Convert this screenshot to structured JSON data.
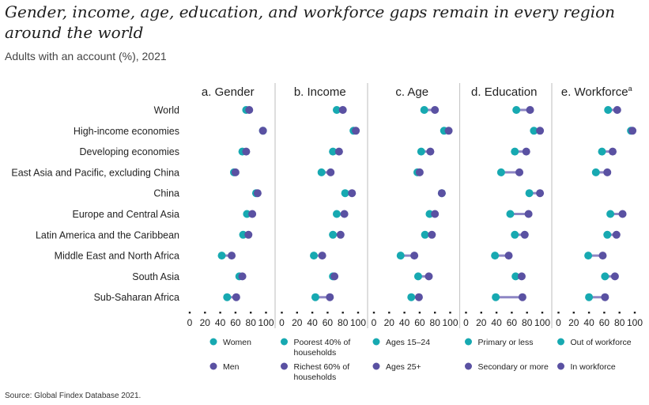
{
  "title": "Gender, income, age, education, and workforce gaps remain in every region around the world",
  "subtitle": "Adults with an account (%), 2021",
  "source": "Source: Global Findex Database 2021.",
  "colors": {
    "group1": "#17A9B1",
    "group2": "#5A51A2",
    "connector": "#8D86C4",
    "divider": "#C8C8C8"
  },
  "chart_data": {
    "type": "dumbbell",
    "title": "Gender, income, age, education, and workforce gaps remain in every region around the world",
    "subtitle": "Adults with an account (%), 2021",
    "categories": [
      "World",
      "High-income economies",
      "Developing economies",
      "East Asia and Pacific, excluding China",
      "China",
      "Europe and Central Asia",
      "Latin America and the Caribbean",
      "Middle East and North Africa",
      "South Asia",
      "Sub-Saharan Africa"
    ],
    "xlim": [
      0,
      100
    ],
    "xticks": [
      "0",
      "20",
      "40",
      "60",
      "80",
      "100"
    ],
    "panels": [
      {
        "title": "a. Gender",
        "sup": "",
        "legend": [
          "Women",
          "Men"
        ],
        "g1": [
          74,
          96,
          69,
          58,
          87,
          75,
          70,
          42,
          65,
          49
        ],
        "g2": [
          78,
          96,
          74,
          60,
          89,
          82,
          77,
          55,
          69,
          61
        ]
      },
      {
        "title": "b. Income",
        "sup": "",
        "legend": [
          "Poorest 40% of households",
          "Richest 60% of households"
        ],
        "g1": [
          72,
          94,
          67,
          52,
          83,
          72,
          67,
          42,
          67,
          44
        ],
        "g2": [
          80,
          97,
          75,
          64,
          92,
          82,
          77,
          53,
          69,
          63
        ]
      },
      {
        "title": "c. Age",
        "sup": "",
        "legend": [
          "Ages 15–24",
          "Ages 25+"
        ],
        "g1": [
          66,
          92,
          62,
          57,
          89,
          73,
          67,
          35,
          58,
          49
        ],
        "g2": [
          80,
          98,
          74,
          60,
          89,
          80,
          76,
          53,
          72,
          59
        ]
      },
      {
        "title": "d. Education",
        "sup": "",
        "legend": [
          "Primary or less",
          "Secondary or more"
        ],
        "g1": [
          66,
          89,
          64,
          46,
          83,
          58,
          64,
          38,
          65,
          39
        ],
        "g2": [
          84,
          97,
          79,
          70,
          97,
          82,
          77,
          56,
          73,
          74
        ]
      },
      {
        "title": "e. Workforce",
        "sup": "a",
        "legend": [
          "Out of workforce",
          "In workforce"
        ],
        "g1": [
          65,
          95,
          57,
          49,
          null,
          68,
          64,
          39,
          61,
          40
        ],
        "g2": [
          77,
          97,
          71,
          64,
          null,
          84,
          76,
          58,
          74,
          61
        ]
      }
    ]
  }
}
